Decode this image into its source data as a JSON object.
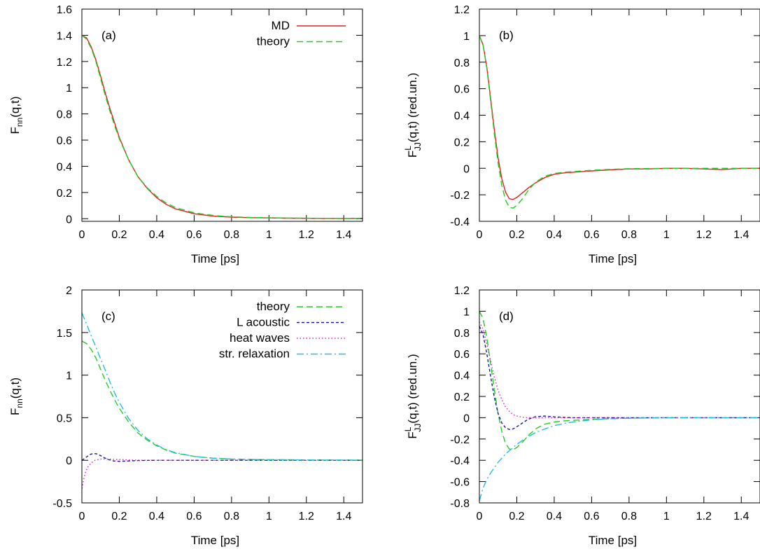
{
  "colors": {
    "md": "#e02020",
    "theory": "#22cc22",
    "l_acoustic": "#1a1aa0",
    "heat_waves": "#d020d0",
    "str_relaxation": "#20c0d8"
  },
  "chart_data": [
    {
      "type": "line",
      "panel_label": "(a)",
      "xlabel": "Time [ps]",
      "ylabel": {
        "main": "F",
        "sub": "nn",
        "sup": "",
        "rest": "(q,t)"
      },
      "xlim": [
        0,
        1.5
      ],
      "ylim": [
        -0.02,
        1.6
      ],
      "xticks": [
        0,
        0.2,
        0.4,
        0.6,
        0.8,
        1,
        1.2,
        1.4
      ],
      "xtick_labels": [
        "0",
        "0.2",
        "0.4",
        "0.6",
        "0.8",
        "1",
        "1.2",
        "1.4"
      ],
      "yticks": [
        0,
        0.2,
        0.4,
        0.6,
        0.8,
        1,
        1.2,
        1.4,
        1.6
      ],
      "ytick_labels": [
        "0",
        "0.2",
        "0.4",
        "0.6",
        "0.8",
        "1",
        "1.2",
        "1.4",
        "1.6"
      ],
      "legend_position": "top-right",
      "series": [
        {
          "name": "MD",
          "color_key": "md",
          "dash": "solid",
          "x": [
            0,
            0.025,
            0.05,
            0.075,
            0.1,
            0.125,
            0.15,
            0.175,
            0.2,
            0.25,
            0.3,
            0.35,
            0.4,
            0.45,
            0.5,
            0.6,
            0.7,
            0.8,
            0.9,
            1.0,
            1.1,
            1.2,
            1.3,
            1.4,
            1.5
          ],
          "y": [
            1.4,
            1.38,
            1.31,
            1.21,
            1.09,
            0.96,
            0.84,
            0.73,
            0.62,
            0.45,
            0.32,
            0.23,
            0.16,
            0.11,
            0.075,
            0.038,
            0.02,
            0.012,
            0.008,
            0.006,
            0.004,
            0.003,
            0.002,
            0.002,
            0.003
          ]
        },
        {
          "name": "theory",
          "color_key": "theory",
          "dash": "dash",
          "x": [
            0,
            0.025,
            0.05,
            0.075,
            0.1,
            0.125,
            0.15,
            0.175,
            0.2,
            0.25,
            0.3,
            0.35,
            0.4,
            0.45,
            0.5,
            0.6,
            0.7,
            0.8,
            0.9,
            1.0,
            1.1,
            1.2,
            1.3,
            1.4,
            1.5
          ],
          "y": [
            1.4,
            1.37,
            1.3,
            1.2,
            1.07,
            0.94,
            0.82,
            0.71,
            0.61,
            0.45,
            0.32,
            0.235,
            0.17,
            0.12,
            0.085,
            0.045,
            0.025,
            0.015,
            0.01,
            0.007,
            0.005,
            0.004,
            0.003,
            0.002,
            0.002
          ]
        }
      ]
    },
    {
      "type": "line",
      "panel_label": "(b)",
      "xlabel": "Time [ps]",
      "ylabel": {
        "main": "F",
        "sub": "JJ",
        "sup": "L",
        "rest": "(q,t) (red.un.)"
      },
      "xlim": [
        0,
        1.5
      ],
      "ylim": [
        -0.4,
        1.2
      ],
      "xticks": [
        0,
        0.2,
        0.4,
        0.6,
        0.8,
        1,
        1.2,
        1.4
      ],
      "xtick_labels": [
        "0",
        "0.2",
        "0.4",
        "0.6",
        "0.8",
        "1",
        "1.2",
        "1.4"
      ],
      "yticks": [
        -0.4,
        -0.2,
        0,
        0.2,
        0.4,
        0.6,
        0.8,
        1,
        1.2
      ],
      "ytick_labels": [
        "-0.4",
        "-0.2",
        "0",
        "0.2",
        "0.4",
        "0.6",
        "0.8",
        "1",
        "1.2"
      ],
      "series": [
        {
          "name": "",
          "color_key": "md",
          "dash": "solid",
          "x": [
            0,
            0.02,
            0.04,
            0.06,
            0.08,
            0.1,
            0.12,
            0.14,
            0.16,
            0.18,
            0.2,
            0.23,
            0.26,
            0.3,
            0.35,
            0.4,
            0.45,
            0.5,
            0.6,
            0.7,
            0.8,
            0.9,
            1.0,
            1.1,
            1.2,
            1.3,
            1.4,
            1.5
          ],
          "y": [
            1.0,
            0.93,
            0.76,
            0.53,
            0.29,
            0.08,
            -0.08,
            -0.18,
            -0.23,
            -0.235,
            -0.22,
            -0.185,
            -0.15,
            -0.11,
            -0.07,
            -0.045,
            -0.035,
            -0.03,
            -0.02,
            -0.012,
            -0.005,
            -0.005,
            0.0,
            0.0,
            -0.005,
            -0.01,
            0.0,
            0.0
          ]
        },
        {
          "name": "",
          "color_key": "theory",
          "dash": "dash",
          "x": [
            0,
            0.02,
            0.04,
            0.06,
            0.08,
            0.1,
            0.12,
            0.14,
            0.16,
            0.18,
            0.2,
            0.23,
            0.26,
            0.3,
            0.35,
            0.4,
            0.45,
            0.5,
            0.6,
            0.7,
            0.8,
            0.9,
            1.0,
            1.1,
            1.2,
            1.3,
            1.4,
            1.5
          ],
          "y": [
            1.0,
            0.93,
            0.75,
            0.51,
            0.26,
            0.04,
            -0.13,
            -0.24,
            -0.295,
            -0.3,
            -0.28,
            -0.23,
            -0.17,
            -0.105,
            -0.06,
            -0.04,
            -0.03,
            -0.025,
            -0.015,
            -0.008,
            -0.003,
            -0.002,
            0.0,
            0.0,
            0.0,
            0.0,
            0.0,
            0.0
          ]
        }
      ]
    },
    {
      "type": "line",
      "panel_label": "(c)",
      "xlabel": "Time [ps]",
      "ylabel": {
        "main": "F",
        "sub": "nn",
        "sup": "",
        "rest": "(q,t)"
      },
      "xlim": [
        0,
        1.5
      ],
      "ylim": [
        -0.5,
        2
      ],
      "xticks": [
        0,
        0.2,
        0.4,
        0.6,
        0.8,
        1,
        1.2,
        1.4
      ],
      "xtick_labels": [
        "0",
        "0.2",
        "0.4",
        "0.6",
        "0.8",
        "1",
        "1.2",
        "1.4"
      ],
      "yticks": [
        -0.5,
        0,
        0.5,
        1,
        1.5,
        2
      ],
      "ytick_labels": [
        "-0.5",
        "0",
        "0.5",
        "1",
        "1.5",
        "2"
      ],
      "legend_position": "top-right",
      "series": [
        {
          "name": "theory",
          "color_key": "theory",
          "dash": "dash",
          "x": [
            0,
            0.025,
            0.05,
            0.075,
            0.1,
            0.125,
            0.15,
            0.175,
            0.2,
            0.25,
            0.3,
            0.35,
            0.4,
            0.45,
            0.5,
            0.6,
            0.7,
            0.8,
            0.9,
            1.0,
            1.2,
            1.5
          ],
          "y": [
            1.4,
            1.37,
            1.3,
            1.2,
            1.07,
            0.94,
            0.82,
            0.71,
            0.61,
            0.45,
            0.32,
            0.235,
            0.17,
            0.12,
            0.085,
            0.045,
            0.025,
            0.015,
            0.01,
            0.007,
            0.004,
            0.002
          ]
        },
        {
          "name": "L acoustic",
          "color_key": "l_acoustic",
          "dash": "short",
          "x": [
            0,
            0.02,
            0.04,
            0.06,
            0.08,
            0.1,
            0.12,
            0.14,
            0.17,
            0.2,
            0.25,
            0.3,
            0.4,
            0.5,
            1.0,
            1.5
          ],
          "y": [
            0.0,
            0.03,
            0.065,
            0.08,
            0.075,
            0.055,
            0.03,
            0.01,
            -0.008,
            -0.012,
            -0.008,
            -0.003,
            0.0,
            0.0,
            0.0,
            0.0
          ]
        },
        {
          "name": "heat waves",
          "color_key": "heat_waves",
          "dash": "dot",
          "x": [
            0,
            0.01,
            0.02,
            0.03,
            0.05,
            0.07,
            0.1,
            0.13,
            0.16,
            0.2,
            0.25,
            0.3,
            0.4,
            0.6,
            1.0,
            1.5
          ],
          "y": [
            -0.33,
            -0.22,
            -0.14,
            -0.085,
            -0.03,
            0.0,
            0.015,
            0.015,
            0.012,
            0.008,
            0.004,
            0.002,
            0.0,
            0.0,
            0.0,
            0.0
          ]
        },
        {
          "name": "str. relaxation",
          "color_key": "str_relaxation",
          "dash": "dashdot",
          "x": [
            0,
            0.025,
            0.05,
            0.075,
            0.1,
            0.125,
            0.15,
            0.175,
            0.2,
            0.25,
            0.3,
            0.35,
            0.4,
            0.45,
            0.5,
            0.6,
            0.7,
            0.8,
            0.9,
            1.0,
            1.2,
            1.5
          ],
          "y": [
            1.73,
            1.6,
            1.46,
            1.33,
            1.19,
            1.06,
            0.92,
            0.79,
            0.68,
            0.49,
            0.35,
            0.25,
            0.18,
            0.125,
            0.09,
            0.045,
            0.025,
            0.015,
            0.01,
            0.007,
            0.004,
            0.002
          ]
        }
      ]
    },
    {
      "type": "line",
      "panel_label": "(d)",
      "xlabel": "Time [ps]",
      "ylabel": {
        "main": "F",
        "sub": "JJ",
        "sup": "L",
        "rest": "(q,t) (red.un.)"
      },
      "xlim": [
        0,
        1.5
      ],
      "ylim": [
        -0.8,
        1.2
      ],
      "xticks": [
        0,
        0.2,
        0.4,
        0.6,
        0.8,
        1,
        1.2,
        1.4
      ],
      "xtick_labels": [
        "0",
        "0.2",
        "0.4",
        "0.6",
        "0.8",
        "1",
        "1.2",
        "1.4"
      ],
      "yticks": [
        -0.8,
        -0.6,
        -0.4,
        -0.2,
        0,
        0.2,
        0.4,
        0.6,
        0.8,
        1,
        1.2
      ],
      "ytick_labels": [
        "-0.8",
        "-0.6",
        "-0.4",
        "-0.2",
        "0",
        "0.2",
        "0.4",
        "0.6",
        "0.8",
        "1",
        "1.2"
      ],
      "series": [
        {
          "name": "",
          "color_key": "theory",
          "dash": "dash",
          "x": [
            0,
            0.02,
            0.04,
            0.06,
            0.08,
            0.1,
            0.12,
            0.14,
            0.16,
            0.18,
            0.2,
            0.23,
            0.26,
            0.3,
            0.35,
            0.4,
            0.45,
            0.5,
            0.6,
            0.7,
            0.8,
            1.0,
            1.5
          ],
          "y": [
            1.0,
            0.93,
            0.75,
            0.51,
            0.26,
            0.04,
            -0.13,
            -0.24,
            -0.295,
            -0.3,
            -0.28,
            -0.23,
            -0.17,
            -0.105,
            -0.06,
            -0.04,
            -0.03,
            -0.025,
            -0.015,
            -0.008,
            -0.003,
            0.0,
            0.0
          ]
        },
        {
          "name": "",
          "color_key": "l_acoustic",
          "dash": "short",
          "x": [
            0,
            0.02,
            0.04,
            0.06,
            0.08,
            0.1,
            0.12,
            0.14,
            0.16,
            0.18,
            0.2,
            0.23,
            0.26,
            0.3,
            0.35,
            0.4,
            0.5,
            0.6,
            1.0,
            1.5
          ],
          "y": [
            0.86,
            0.78,
            0.6,
            0.39,
            0.19,
            0.04,
            -0.05,
            -0.095,
            -0.11,
            -0.105,
            -0.085,
            -0.05,
            -0.015,
            0.01,
            0.015,
            0.008,
            0.0,
            0.0,
            0.0,
            0.0
          ]
        },
        {
          "name": "",
          "color_key": "heat_waves",
          "dash": "dot",
          "x": [
            0,
            0.02,
            0.04,
            0.06,
            0.08,
            0.1,
            0.12,
            0.14,
            0.16,
            0.18,
            0.2,
            0.23,
            0.26,
            0.3,
            0.35,
            0.4,
            0.5,
            1.0,
            1.5
          ],
          "y": [
            0.9,
            0.83,
            0.69,
            0.53,
            0.38,
            0.26,
            0.17,
            0.1,
            0.06,
            0.03,
            0.015,
            0.005,
            0.0,
            -0.002,
            0.0,
            0.0,
            0.0,
            0.0,
            0.0
          ]
        },
        {
          "name": "",
          "color_key": "str_relaxation",
          "dash": "dashdot",
          "x": [
            0,
            0.02,
            0.04,
            0.06,
            0.08,
            0.1,
            0.12,
            0.14,
            0.16,
            0.18,
            0.2,
            0.25,
            0.3,
            0.35,
            0.4,
            0.45,
            0.5,
            0.6,
            0.7,
            0.8,
            1.0,
            1.5
          ],
          "y": [
            -0.78,
            -0.66,
            -0.58,
            -0.52,
            -0.47,
            -0.42,
            -0.38,
            -0.34,
            -0.31,
            -0.28,
            -0.25,
            -0.19,
            -0.14,
            -0.105,
            -0.075,
            -0.055,
            -0.04,
            -0.02,
            -0.01,
            -0.005,
            0.0,
            0.0
          ]
        }
      ]
    }
  ]
}
